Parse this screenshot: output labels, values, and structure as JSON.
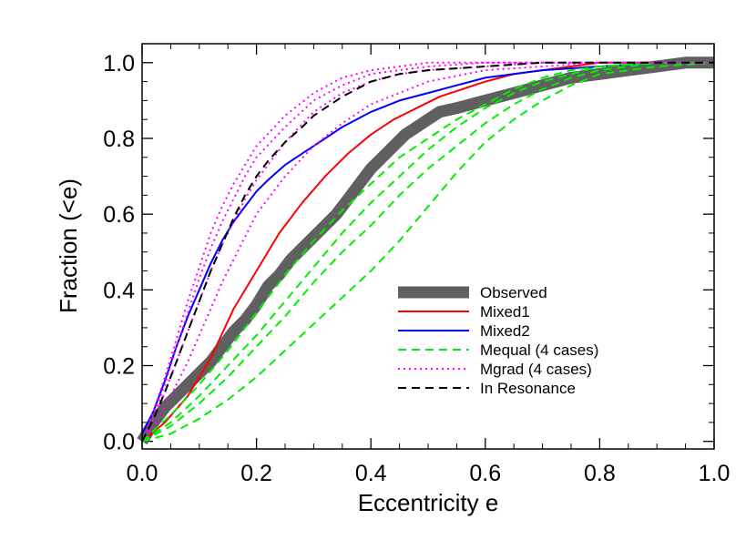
{
  "chart_data": {
    "type": "line",
    "title": "",
    "xlabel": "Eccentricity e",
    "ylabel": "Fraction (<e)",
    "xlim": [
      0.0,
      1.0
    ],
    "ylim": [
      -0.02,
      1.05
    ],
    "xticks": [
      "0.0",
      "0.2",
      "0.4",
      "0.6",
      "0.8",
      "1.0"
    ],
    "yticks": [
      "0.0",
      "0.2",
      "0.4",
      "0.6",
      "0.8",
      "1.0"
    ],
    "xtick_values": [
      0.0,
      0.2,
      0.4,
      0.6,
      0.8,
      1.0
    ],
    "ytick_values": [
      0.0,
      0.2,
      0.4,
      0.6,
      0.8,
      1.0
    ],
    "legend_position": "lower-right",
    "series": [
      {
        "name": "Observed",
        "legend": "Observed",
        "color": "#606060",
        "style": "solid-thick",
        "x": [
          0.0,
          0.02,
          0.04,
          0.06,
          0.08,
          0.1,
          0.12,
          0.14,
          0.16,
          0.18,
          0.2,
          0.22,
          0.24,
          0.26,
          0.28,
          0.3,
          0.32,
          0.34,
          0.36,
          0.38,
          0.4,
          0.42,
          0.44,
          0.46,
          0.48,
          0.5,
          0.52,
          0.55,
          0.6,
          0.65,
          0.7,
          0.75,
          0.8,
          0.85,
          0.9,
          0.95,
          1.0
        ],
        "y": [
          0.0,
          0.05,
          0.09,
          0.12,
          0.15,
          0.18,
          0.21,
          0.25,
          0.29,
          0.32,
          0.36,
          0.41,
          0.44,
          0.48,
          0.51,
          0.54,
          0.57,
          0.6,
          0.64,
          0.68,
          0.72,
          0.75,
          0.78,
          0.81,
          0.83,
          0.85,
          0.87,
          0.88,
          0.9,
          0.92,
          0.94,
          0.96,
          0.97,
          0.98,
          0.99,
          1.0,
          1.0
        ]
      },
      {
        "name": "Mixed1",
        "legend": "Mixed1",
        "color": "#ff0000",
        "style": "solid",
        "x": [
          0.0,
          0.04,
          0.08,
          0.12,
          0.16,
          0.2,
          0.24,
          0.28,
          0.32,
          0.36,
          0.4,
          0.44,
          0.48,
          0.52,
          0.56,
          0.6,
          0.65,
          0.7,
          0.75,
          0.8,
          0.9,
          1.0
        ],
        "y": [
          0.0,
          0.05,
          0.12,
          0.22,
          0.35,
          0.45,
          0.55,
          0.63,
          0.7,
          0.76,
          0.81,
          0.85,
          0.88,
          0.91,
          0.93,
          0.95,
          0.97,
          0.98,
          0.99,
          1.0,
          1.0,
          1.0
        ]
      },
      {
        "name": "Mixed2",
        "legend": "Mixed2",
        "color": "#0000ff",
        "style": "solid",
        "x": [
          0.0,
          0.02,
          0.04,
          0.06,
          0.08,
          0.1,
          0.12,
          0.14,
          0.16,
          0.18,
          0.2,
          0.22,
          0.25,
          0.28,
          0.3,
          0.35,
          0.4,
          0.45,
          0.5,
          0.55,
          0.6,
          0.65,
          0.7,
          0.8,
          0.9,
          1.0
        ],
        "y": [
          0.02,
          0.08,
          0.16,
          0.25,
          0.33,
          0.4,
          0.47,
          0.53,
          0.58,
          0.62,
          0.66,
          0.69,
          0.73,
          0.76,
          0.78,
          0.83,
          0.87,
          0.9,
          0.92,
          0.94,
          0.96,
          0.97,
          0.98,
          0.99,
          1.0,
          1.0
        ]
      },
      {
        "name": "Mequal case 1",
        "legend": "Mequal (4 cases)",
        "color": "#00ee00",
        "style": "dashed",
        "x": [
          0.0,
          0.05,
          0.1,
          0.15,
          0.2,
          0.25,
          0.3,
          0.35,
          0.4,
          0.45,
          0.5,
          0.55,
          0.6,
          0.65,
          0.7,
          0.75,
          0.8,
          0.9,
          1.0
        ],
        "y": [
          0.0,
          0.07,
          0.15,
          0.24,
          0.34,
          0.44,
          0.53,
          0.61,
          0.68,
          0.75,
          0.8,
          0.85,
          0.89,
          0.93,
          0.96,
          0.98,
          0.99,
          1.0,
          1.0
        ]
      },
      {
        "name": "Mequal case 2",
        "legend": "",
        "color": "#00ee00",
        "style": "dashed",
        "x": [
          0.0,
          0.05,
          0.1,
          0.15,
          0.2,
          0.25,
          0.3,
          0.35,
          0.4,
          0.45,
          0.5,
          0.55,
          0.6,
          0.65,
          0.7,
          0.75,
          0.8,
          0.9,
          1.0
        ],
        "y": [
          0.0,
          0.05,
          0.12,
          0.2,
          0.28,
          0.37,
          0.46,
          0.55,
          0.63,
          0.7,
          0.77,
          0.83,
          0.88,
          0.92,
          0.95,
          0.97,
          0.99,
          1.0,
          1.0
        ]
      },
      {
        "name": "Mequal case 3",
        "legend": "",
        "color": "#00ee00",
        "style": "dashed",
        "x": [
          0.0,
          0.05,
          0.1,
          0.15,
          0.2,
          0.25,
          0.3,
          0.35,
          0.4,
          0.45,
          0.5,
          0.55,
          0.6,
          0.65,
          0.7,
          0.75,
          0.8,
          0.9,
          1.0
        ],
        "y": [
          0.0,
          0.04,
          0.1,
          0.17,
          0.25,
          0.33,
          0.42,
          0.5,
          0.57,
          0.65,
          0.72,
          0.78,
          0.84,
          0.89,
          0.93,
          0.96,
          0.98,
          1.0,
          1.0
        ]
      },
      {
        "name": "Mequal case 4",
        "legend": "",
        "color": "#00ee00",
        "style": "dashed",
        "x": [
          0.0,
          0.05,
          0.1,
          0.15,
          0.2,
          0.25,
          0.3,
          0.35,
          0.4,
          0.45,
          0.5,
          0.55,
          0.6,
          0.65,
          0.7,
          0.75,
          0.8,
          0.9,
          1.0
        ],
        "y": [
          0.0,
          0.02,
          0.06,
          0.11,
          0.17,
          0.24,
          0.31,
          0.38,
          0.45,
          0.53,
          0.62,
          0.71,
          0.79,
          0.85,
          0.9,
          0.94,
          0.97,
          0.99,
          1.0
        ]
      },
      {
        "name": "Mgrad case 1",
        "legend": "Mgrad (4 cases)",
        "color": "#ff00ff",
        "style": "dotted",
        "x": [
          0.0,
          0.02,
          0.04,
          0.06,
          0.08,
          0.1,
          0.12,
          0.14,
          0.16,
          0.18,
          0.2,
          0.25,
          0.3,
          0.35,
          0.4,
          0.45,
          0.5,
          0.6,
          0.7,
          0.8,
          1.0
        ],
        "y": [
          0.0,
          0.08,
          0.17,
          0.27,
          0.37,
          0.46,
          0.55,
          0.62,
          0.68,
          0.73,
          0.78,
          0.86,
          0.92,
          0.96,
          0.98,
          0.99,
          1.0,
          1.0,
          1.0,
          1.0,
          1.0
        ]
      },
      {
        "name": "Mgrad case 2",
        "legend": "",
        "color": "#ff00ff",
        "style": "dotted",
        "x": [
          0.0,
          0.02,
          0.04,
          0.06,
          0.08,
          0.1,
          0.12,
          0.14,
          0.16,
          0.18,
          0.2,
          0.25,
          0.3,
          0.35,
          0.4,
          0.45,
          0.5,
          0.6,
          0.7,
          0.8,
          1.0
        ],
        "y": [
          0.0,
          0.07,
          0.15,
          0.25,
          0.34,
          0.43,
          0.51,
          0.58,
          0.64,
          0.7,
          0.75,
          0.83,
          0.9,
          0.94,
          0.97,
          0.98,
          0.99,
          1.0,
          1.0,
          1.0,
          1.0
        ]
      },
      {
        "name": "Mgrad case 3",
        "legend": "",
        "color": "#ff00ff",
        "style": "dotted",
        "x": [
          0.0,
          0.02,
          0.04,
          0.06,
          0.08,
          0.1,
          0.12,
          0.14,
          0.16,
          0.18,
          0.2,
          0.25,
          0.3,
          0.35,
          0.4,
          0.45,
          0.5,
          0.6,
          0.7,
          0.8,
          1.0
        ],
        "y": [
          0.0,
          0.06,
          0.13,
          0.21,
          0.29,
          0.37,
          0.45,
          0.52,
          0.58,
          0.64,
          0.69,
          0.79,
          0.87,
          0.92,
          0.95,
          0.97,
          0.98,
          0.99,
          1.0,
          1.0,
          1.0
        ]
      },
      {
        "name": "Mgrad case 4",
        "legend": "",
        "color": "#ff00ff",
        "style": "dotted",
        "x": [
          0.0,
          0.02,
          0.04,
          0.06,
          0.08,
          0.1,
          0.12,
          0.14,
          0.16,
          0.18,
          0.2,
          0.25,
          0.3,
          0.35,
          0.4,
          0.45,
          0.5,
          0.6,
          0.7,
          0.8,
          1.0
        ],
        "y": [
          0.0,
          0.04,
          0.09,
          0.15,
          0.21,
          0.28,
          0.35,
          0.42,
          0.48,
          0.54,
          0.6,
          0.7,
          0.78,
          0.84,
          0.89,
          0.92,
          0.95,
          0.98,
          0.99,
          1.0,
          1.0
        ]
      },
      {
        "name": "In Resonance",
        "legend": "In Resonance",
        "color": "#000000",
        "style": "dashed",
        "x": [
          0.0,
          0.02,
          0.04,
          0.06,
          0.08,
          0.1,
          0.12,
          0.14,
          0.16,
          0.18,
          0.2,
          0.22,
          0.25,
          0.28,
          0.3,
          0.35,
          0.4,
          0.45,
          0.5,
          0.6,
          0.7,
          0.8,
          1.0
        ],
        "y": [
          0.0,
          0.06,
          0.13,
          0.21,
          0.29,
          0.37,
          0.45,
          0.52,
          0.59,
          0.65,
          0.7,
          0.74,
          0.79,
          0.83,
          0.86,
          0.91,
          0.95,
          0.97,
          0.98,
          0.99,
          1.0,
          1.0,
          1.0
        ]
      }
    ]
  }
}
